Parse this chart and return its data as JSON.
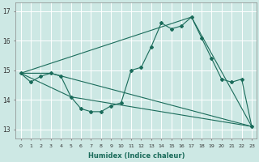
{
  "xlabel": "Humidex (Indice chaleur)",
  "background_color": "#cde8e4",
  "grid_color": "#ffffff",
  "line_color": "#1a6b5a",
  "xlim": [
    -0.5,
    23.5
  ],
  "ylim": [
    12.7,
    17.3
  ],
  "yticks": [
    13,
    14,
    15,
    16,
    17
  ],
  "xticks": [
    0,
    1,
    2,
    3,
    4,
    5,
    6,
    7,
    8,
    9,
    10,
    11,
    12,
    13,
    14,
    15,
    16,
    17,
    18,
    19,
    20,
    21,
    22,
    23
  ],
  "series1_x": [
    0,
    1,
    2,
    3,
    4,
    5,
    6,
    7,
    8,
    9,
    10,
    11,
    12,
    13,
    14,
    15,
    16,
    17,
    18,
    19,
    20,
    21,
    22,
    23
  ],
  "series1_y": [
    14.9,
    14.6,
    14.8,
    14.9,
    14.8,
    14.1,
    13.7,
    13.6,
    13.6,
    13.8,
    13.9,
    15.0,
    15.1,
    15.8,
    16.6,
    16.4,
    16.5,
    16.8,
    16.1,
    15.4,
    14.7,
    14.6,
    14.7,
    13.1
  ],
  "series2_x": [
    0,
    17,
    23
  ],
  "series2_y": [
    14.9,
    16.8,
    13.1
  ],
  "series3_x": [
    0,
    5,
    23
  ],
  "series3_y": [
    14.9,
    14.1,
    13.1
  ],
  "series4_x": [
    0,
    3,
    23
  ],
  "series4_y": [
    14.9,
    14.9,
    13.1
  ],
  "figsize": [
    3.2,
    2.0
  ],
  "dpi": 100
}
